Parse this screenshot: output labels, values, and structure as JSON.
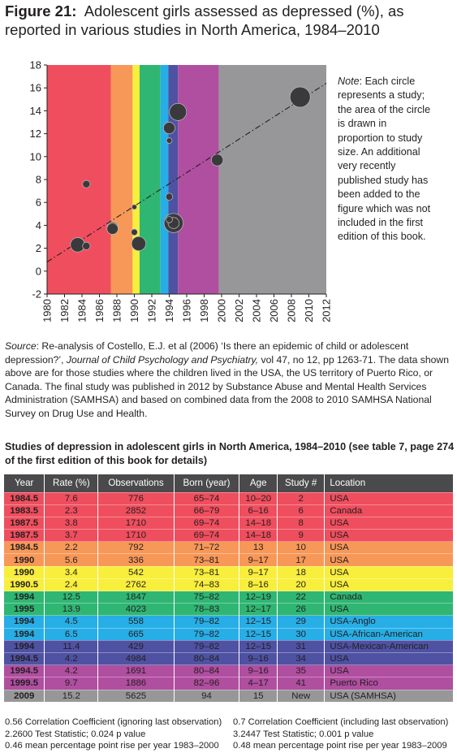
{
  "title": {
    "label": "Figure 21:",
    "text": "Adolescent girls assessed as depressed (%), as reported in various studies in North America, 1984–2010"
  },
  "note": {
    "label": "Note",
    "text": ": Each circle represents a study; the area of the circle is drawn in proportion to study size. An additional very recently published study has been added to the figure which was not included in the first edition of this book."
  },
  "source": {
    "label": "Source",
    "text1": ":  Re-analysis of Costello, E.J. et al (2006) ‘Is there an epidemic of child or adolescent depression?’, ",
    "journal": "Journal of Child Psychology and Psychiatry,",
    "text2": " vol 47, no 12, pp 1263-71. The data shown above are for those studies where the children lived in the USA, the US territory of Puerto Rico, or Canada. The final study was published in 2012 by Substance Abuse and Mental Health Services Administration (SAMHSA) and based on combined data from the 2008 to 2010 SAMHSA National Survey on Drug Use and Health."
  },
  "chart_data": {
    "type": "scatter",
    "xlim": [
      1980,
      2012
    ],
    "ylim": [
      -2,
      18
    ],
    "x_ticks": [
      "1980",
      "1982",
      "1984",
      "1986",
      "1988",
      "1990",
      "1992",
      "1994",
      "1996",
      "1998",
      "2000",
      "2002",
      "2004",
      "2006",
      "2008",
      "2010",
      "2012"
    ],
    "y_ticks": [
      "18",
      "16",
      "14",
      "12",
      "10",
      "8",
      "6",
      "4",
      "2",
      "0",
      "-2"
    ],
    "bands": [
      {
        "from": 1980,
        "to": 1987.3,
        "color": "#ef4e5e"
      },
      {
        "from": 1987.3,
        "to": 1989.8,
        "color": "#f79858"
      },
      {
        "from": 1989.8,
        "to": 1990.6,
        "color": "#f8ee3c"
      },
      {
        "from": 1990.6,
        "to": 1993.0,
        "color": "#2fb673"
      },
      {
        "from": 1993.0,
        "to": 1993.9,
        "color": "#27aee6"
      },
      {
        "from": 1993.9,
        "to": 1995.0,
        "color": "#4f52a3"
      },
      {
        "from": 1995.0,
        "to": 1999.7,
        "color": "#b04ea0"
      },
      {
        "from": 1999.7,
        "to": 2012.0,
        "color": "#979799"
      }
    ],
    "trend_line": {
      "x1": 1980,
      "y1": 0.8,
      "x2": 2012,
      "y2": 16.4
    },
    "points": [
      {
        "x": 1984.5,
        "y": 7.6,
        "n": 776
      },
      {
        "x": 1983.5,
        "y": 2.3,
        "n": 2852
      },
      {
        "x": 1987.5,
        "y": 3.8,
        "n": 1710
      },
      {
        "x": 1987.5,
        "y": 3.7,
        "n": 1710
      },
      {
        "x": 1984.5,
        "y": 2.2,
        "n": 792
      },
      {
        "x": 1990,
        "y": 5.6,
        "n": 336
      },
      {
        "x": 1990,
        "y": 3.4,
        "n": 542
      },
      {
        "x": 1990.5,
        "y": 2.4,
        "n": 2762
      },
      {
        "x": 1994,
        "y": 12.5,
        "n": 1847
      },
      {
        "x": 1995,
        "y": 13.9,
        "n": 4023
      },
      {
        "x": 1994,
        "y": 4.5,
        "n": 558
      },
      {
        "x": 1994,
        "y": 6.5,
        "n": 665
      },
      {
        "x": 1994,
        "y": 11.4,
        "n": 429
      },
      {
        "x": 1994.5,
        "y": 4.2,
        "n": 4984
      },
      {
        "x": 1994.5,
        "y": 4.2,
        "n": 1691
      },
      {
        "x": 1999.5,
        "y": 9.7,
        "n": 1886
      },
      {
        "x": 2009,
        "y": 15.2,
        "n": 5625
      }
    ],
    "colors": {
      "point": "#3a3a3c",
      "point_stroke": "#bdbdbd",
      "axis": "#231f20"
    }
  },
  "table": {
    "title": "Studies of depression in adolescent girls in North America, 1984–2010 (see table 7, page 274 of the first edition of this book for details)",
    "headers": [
      "Year",
      "Rate (%)",
      "Observations",
      "Born (year)",
      "Age",
      "Study #",
      "Location"
    ],
    "rows": [
      {
        "cells": [
          "1984.5",
          "7.6",
          "776",
          "65–74",
          "10–20",
          "2",
          "USA"
        ],
        "color": "#ef4e5e"
      },
      {
        "cells": [
          "1983.5",
          "2.3",
          "2852",
          "66–79",
          "6–16",
          "6",
          "Canada"
        ],
        "color": "#ef4e5e"
      },
      {
        "cells": [
          "1987.5",
          "3.8",
          "1710",
          "69–74",
          "14–18",
          "8",
          "USA"
        ],
        "color": "#ef4e5e"
      },
      {
        "cells": [
          "1987.5",
          "3.7",
          "1710",
          "69–74",
          "14–18",
          "9",
          "USA"
        ],
        "color": "#ef4e5e"
      },
      {
        "cells": [
          "1984.5",
          "2.2",
          "792",
          "71–72",
          "13",
          "10",
          "USA"
        ],
        "color": "#f79858"
      },
      {
        "cells": [
          "1990",
          "5.6",
          "336",
          "73–81",
          "9–17",
          "17",
          "USA"
        ],
        "color": "#f79858"
      },
      {
        "cells": [
          "1990",
          "3.4",
          "542",
          "73–81",
          "9–17",
          "18",
          "USA"
        ],
        "color": "#f8ee3c"
      },
      {
        "cells": [
          "1990.5",
          "2.4",
          "2762",
          "74–83",
          "8–16",
          "20",
          "USA"
        ],
        "color": "#f8ee3c"
      },
      {
        "cells": [
          "1994",
          "12.5",
          "1847",
          "75–82",
          "12–19",
          "22",
          "Canada"
        ],
        "color": "#2fb673"
      },
      {
        "cells": [
          "1995",
          "13.9",
          "4023",
          "78–83",
          "12–17",
          "26",
          "USA"
        ],
        "color": "#2fb673"
      },
      {
        "cells": [
          "1994",
          "4.5",
          "558",
          "79–82",
          "12–15",
          "29",
          "USA-Anglo"
        ],
        "color": "#27aee6"
      },
      {
        "cells": [
          "1994",
          "6.5",
          "665",
          "79–82",
          "12–15",
          "30",
          "USA-African-American"
        ],
        "color": "#27aee6"
      },
      {
        "cells": [
          "1994",
          "11.4",
          "429",
          "79–82",
          "12–15",
          "31",
          "USA-Mexican-American"
        ],
        "color": "#4f52a3"
      },
      {
        "cells": [
          "1994.5",
          "4.2",
          "4984",
          "80–84",
          "9–16",
          "34",
          "USA"
        ],
        "color": "#4f52a3"
      },
      {
        "cells": [
          "1994.5",
          "4.2",
          "1691",
          "80–84",
          "9–16",
          "35",
          "USA"
        ],
        "color": "#b04ea0"
      },
      {
        "cells": [
          "1999.5",
          "9.7",
          "1886",
          "82–96",
          "4–17",
          "41",
          "Puerto Rico"
        ],
        "color": "#b04ea0"
      },
      {
        "cells": [
          "2009",
          "15.2",
          "5625",
          "94",
          "15",
          "New",
          "USA (SAMHSA)"
        ],
        "color": "#979799"
      }
    ]
  },
  "stats": {
    "left": [
      "0.56 Correlation Coefficient (ignoring last observation)",
      "2.2600 Test Statistic;  0.024 p value",
      "0.46 mean percentage point rise per year 1983–2000"
    ],
    "right": [
      "0.7 Correlation Coefficient (including last observation)",
      "3.2447 Test Statistic;  0.001 p value",
      "0.48 mean percentage point rise per year 1983–2009"
    ]
  }
}
